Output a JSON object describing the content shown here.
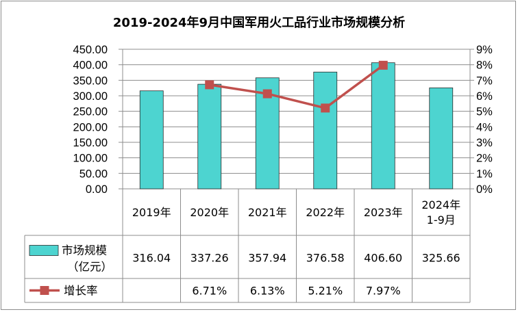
{
  "chart_data": {
    "type": "bar",
    "title": "2019-2024年9月中国军用火工品行业市场规模分析",
    "categories": [
      "2019年",
      "2020年",
      "2021年",
      "2022年",
      "2023年",
      "2024年\n1-9月"
    ],
    "series": [
      {
        "name": "市场规模（亿元）",
        "type": "bar",
        "axis": "left",
        "values": [
          316.04,
          337.26,
          357.94,
          376.58,
          406.6,
          325.66
        ],
        "labels": [
          "316.04",
          "337.26",
          "357.94",
          "376.58",
          "406.60",
          "325.66"
        ],
        "color": "#4dd4d0"
      },
      {
        "name": "增长率",
        "type": "line",
        "axis": "right",
        "values": [
          null,
          6.71,
          6.13,
          5.21,
          7.97,
          null
        ],
        "labels": [
          "",
          "6.71%",
          "6.13%",
          "5.21%",
          "7.97%",
          ""
        ],
        "color": "#c0504d"
      }
    ],
    "y_left": {
      "ylim": [
        0,
        450
      ],
      "ticks": [
        "0.00",
        "50.00",
        "100.00",
        "150.00",
        "200.00",
        "250.00",
        "300.00",
        "350.00",
        "400.00",
        "450.00"
      ]
    },
    "y_right": {
      "ylim": [
        0,
        9
      ],
      "ticks": [
        "0%",
        "1%",
        "2%",
        "3%",
        "4%",
        "5%",
        "6%",
        "7%",
        "8%",
        "9%"
      ]
    },
    "grid": true,
    "legend": "data-table"
  }
}
